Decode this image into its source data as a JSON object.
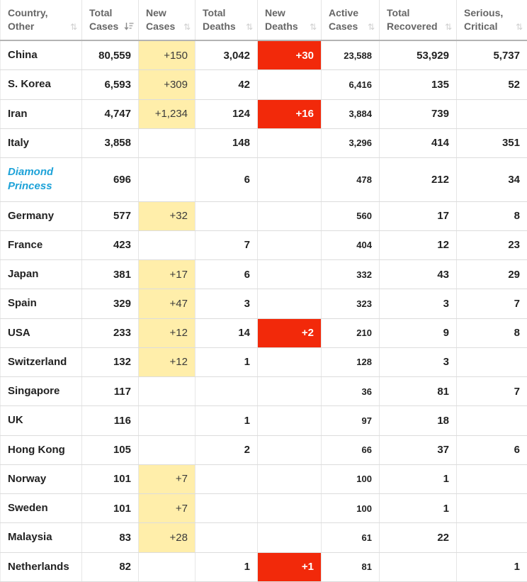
{
  "table": {
    "columns": [
      {
        "id": "country",
        "label": "Country, Other",
        "sort": "none"
      },
      {
        "id": "total_cases",
        "label": "Total Cases",
        "sort": "desc"
      },
      {
        "id": "new_cases",
        "label": "New Cases",
        "sort": "none"
      },
      {
        "id": "total_deaths",
        "label": "Total Deaths",
        "sort": "none"
      },
      {
        "id": "new_deaths",
        "label": "New Deaths",
        "sort": "none"
      },
      {
        "id": "active_cases",
        "label": "Active Cases",
        "sort": "none"
      },
      {
        "id": "total_recovered",
        "label": "Total Recovered",
        "sort": "none"
      },
      {
        "id": "serious_critical",
        "label": "Serious, Critical",
        "sort": "none"
      }
    ],
    "rows": [
      {
        "country": "China",
        "is_link": false,
        "total_cases": "80,559",
        "new_cases": "+150",
        "total_deaths": "3,042",
        "new_deaths": "+30",
        "active_cases": "23,588",
        "total_recovered": "53,929",
        "serious_critical": "5,737"
      },
      {
        "country": "S. Korea",
        "is_link": false,
        "total_cases": "6,593",
        "new_cases": "+309",
        "total_deaths": "42",
        "new_deaths": "",
        "active_cases": "6,416",
        "total_recovered": "135",
        "serious_critical": "52"
      },
      {
        "country": "Iran",
        "is_link": false,
        "total_cases": "4,747",
        "new_cases": "+1,234",
        "total_deaths": "124",
        "new_deaths": "+16",
        "active_cases": "3,884",
        "total_recovered": "739",
        "serious_critical": ""
      },
      {
        "country": "Italy",
        "is_link": false,
        "total_cases": "3,858",
        "new_cases": "",
        "total_deaths": "148",
        "new_deaths": "",
        "active_cases": "3,296",
        "total_recovered": "414",
        "serious_critical": "351"
      },
      {
        "country": "Diamond Princess",
        "is_link": true,
        "total_cases": "696",
        "new_cases": "",
        "total_deaths": "6",
        "new_deaths": "",
        "active_cases": "478",
        "total_recovered": "212",
        "serious_critical": "34"
      },
      {
        "country": "Germany",
        "is_link": false,
        "total_cases": "577",
        "new_cases": "+32",
        "total_deaths": "",
        "new_deaths": "",
        "active_cases": "560",
        "total_recovered": "17",
        "serious_critical": "8"
      },
      {
        "country": "France",
        "is_link": false,
        "total_cases": "423",
        "new_cases": "",
        "total_deaths": "7",
        "new_deaths": "",
        "active_cases": "404",
        "total_recovered": "12",
        "serious_critical": "23"
      },
      {
        "country": "Japan",
        "is_link": false,
        "total_cases": "381",
        "new_cases": "+17",
        "total_deaths": "6",
        "new_deaths": "",
        "active_cases": "332",
        "total_recovered": "43",
        "serious_critical": "29"
      },
      {
        "country": "Spain",
        "is_link": false,
        "total_cases": "329",
        "new_cases": "+47",
        "total_deaths": "3",
        "new_deaths": "",
        "active_cases": "323",
        "total_recovered": "3",
        "serious_critical": "7"
      },
      {
        "country": "USA",
        "is_link": false,
        "total_cases": "233",
        "new_cases": "+12",
        "total_deaths": "14",
        "new_deaths": "+2",
        "active_cases": "210",
        "total_recovered": "9",
        "serious_critical": "8"
      },
      {
        "country": "Switzerland",
        "is_link": false,
        "total_cases": "132",
        "new_cases": "+12",
        "total_deaths": "1",
        "new_deaths": "",
        "active_cases": "128",
        "total_recovered": "3",
        "serious_critical": ""
      },
      {
        "country": "Singapore",
        "is_link": false,
        "total_cases": "117",
        "new_cases": "",
        "total_deaths": "",
        "new_deaths": "",
        "active_cases": "36",
        "total_recovered": "81",
        "serious_critical": "7"
      },
      {
        "country": "UK",
        "is_link": false,
        "total_cases": "116",
        "new_cases": "",
        "total_deaths": "1",
        "new_deaths": "",
        "active_cases": "97",
        "total_recovered": "18",
        "serious_critical": ""
      },
      {
        "country": "Hong Kong",
        "is_link": false,
        "total_cases": "105",
        "new_cases": "",
        "total_deaths": "2",
        "new_deaths": "",
        "active_cases": "66",
        "total_recovered": "37",
        "serious_critical": "6"
      },
      {
        "country": "Norway",
        "is_link": false,
        "total_cases": "101",
        "new_cases": "+7",
        "total_deaths": "",
        "new_deaths": "",
        "active_cases": "100",
        "total_recovered": "1",
        "serious_critical": ""
      },
      {
        "country": "Sweden",
        "is_link": false,
        "total_cases": "101",
        "new_cases": "+7",
        "total_deaths": "",
        "new_deaths": "",
        "active_cases": "100",
        "total_recovered": "1",
        "serious_critical": ""
      },
      {
        "country": "Malaysia",
        "is_link": false,
        "total_cases": "83",
        "new_cases": "+28",
        "total_deaths": "",
        "new_deaths": "",
        "active_cases": "61",
        "total_recovered": "22",
        "serious_critical": ""
      },
      {
        "country": "Netherlands",
        "is_link": false,
        "total_cases": "82",
        "new_cases": "",
        "total_deaths": "1",
        "new_deaths": "+1",
        "active_cases": "81",
        "total_recovered": "",
        "serious_critical": "1"
      }
    ]
  },
  "icons": {
    "sort_both": "⇅",
    "sort_desc_name": "sort-amount-desc-icon"
  },
  "colors": {
    "new_cases_bg": "#FFEEAA",
    "new_deaths_bg": "#F2290A",
    "link_blue": "#1DA2D8",
    "header_text": "#666666"
  }
}
